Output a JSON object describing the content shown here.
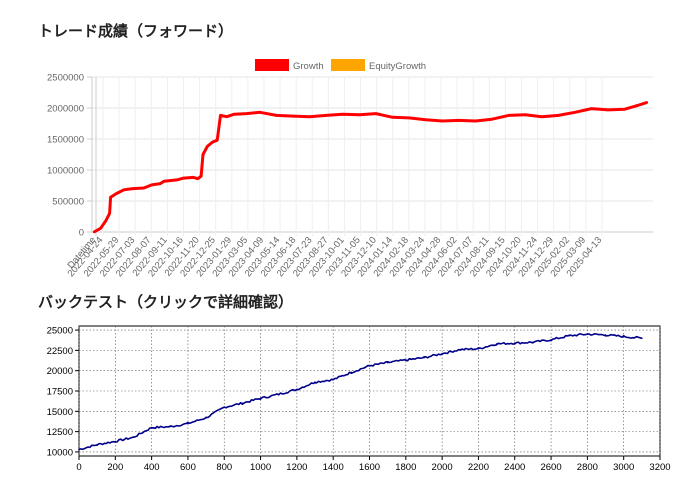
{
  "sections": {
    "forward_title": "トレード成績（フォワード）",
    "backtest_title": "バックテスト（クリックで詳細確認）"
  },
  "chart_data": [
    {
      "type": "line",
      "title": "トレード成績（フォワード）",
      "legend": {
        "placement": "top-center",
        "entries": [
          {
            "name": "Growth",
            "color": "#ff0000"
          },
          {
            "name": "EquityGrowth",
            "color": "#ffa500"
          }
        ]
      },
      "x_first_label": "Datetime",
      "x_tick_labels": [
        "2022-04-24",
        "2022-05-29",
        "2022-07-03",
        "2022-08-07",
        "2022-09-11",
        "2022-10-16",
        "2022-11-20",
        "2022-12-25",
        "2023-01-29",
        "2023-03-05",
        "2023-04-09",
        "2023-05-14",
        "2023-06-18",
        "2023-07-23",
        "2023-08-27",
        "2023-10-01",
        "2023-11-05",
        "2023-12-10",
        "2024-01-14",
        "2024-02-18",
        "2024-03-24",
        "2024-04-28",
        "2024-06-02",
        "2024-07-07",
        "2024-08-11",
        "2024-09-15",
        "2024-10-20",
        "2024-11-24",
        "2024-12-29",
        "2025-02-02",
        "2025-03-09",
        "2025-04-13"
      ],
      "ylim": [
        0,
        2500000
      ],
      "y_ticks": [
        0,
        500000,
        1000000,
        1500000,
        2000000,
        2500000
      ],
      "grid": true,
      "series": [
        {
          "name": "Growth",
          "color": "#ff0000",
          "points": [
            [
              "2022-03-20",
              0
            ],
            [
              "2022-04-03",
              60000
            ],
            [
              "2022-04-14",
              180000
            ],
            [
              "2022-04-22",
              300000
            ],
            [
              "2022-04-24",
              560000
            ],
            [
              "2022-05-06",
              620000
            ],
            [
              "2022-05-22",
              680000
            ],
            [
              "2022-06-10",
              700000
            ],
            [
              "2022-07-03",
              710000
            ],
            [
              "2022-07-20",
              760000
            ],
            [
              "2022-08-07",
              780000
            ],
            [
              "2022-08-15",
              820000
            ],
            [
              "2022-09-11",
              840000
            ],
            [
              "2022-09-25",
              870000
            ],
            [
              "2022-10-16",
              880000
            ],
            [
              "2022-10-25",
              860000
            ],
            [
              "2022-11-01",
              900000
            ],
            [
              "2022-11-05",
              1250000
            ],
            [
              "2022-11-14",
              1380000
            ],
            [
              "2022-11-25",
              1450000
            ],
            [
              "2022-12-05",
              1480000
            ],
            [
              "2022-12-12",
              1880000
            ],
            [
              "2022-12-25",
              1860000
            ],
            [
              "2023-01-10",
              1900000
            ],
            [
              "2023-02-05",
              1910000
            ],
            [
              "2023-03-05",
              1930000
            ],
            [
              "2023-04-09",
              1880000
            ],
            [
              "2023-05-14",
              1870000
            ],
            [
              "2023-06-18",
              1860000
            ],
            [
              "2023-07-23",
              1880000
            ],
            [
              "2023-08-27",
              1900000
            ],
            [
              "2023-10-01",
              1890000
            ],
            [
              "2023-11-05",
              1910000
            ],
            [
              "2023-12-10",
              1850000
            ],
            [
              "2024-01-14",
              1840000
            ],
            [
              "2024-02-18",
              1810000
            ],
            [
              "2024-03-24",
              1790000
            ],
            [
              "2024-04-28",
              1800000
            ],
            [
              "2024-06-02",
              1790000
            ],
            [
              "2024-07-07",
              1820000
            ],
            [
              "2024-08-11",
              1880000
            ],
            [
              "2024-09-15",
              1890000
            ],
            [
              "2024-10-20",
              1860000
            ],
            [
              "2024-11-24",
              1880000
            ],
            [
              "2024-12-29",
              1930000
            ],
            [
              "2025-02-02",
              1990000
            ],
            [
              "2025-03-09",
              1970000
            ],
            [
              "2025-04-13",
              1980000
            ],
            [
              "2025-05-10",
              2040000
            ],
            [
              "2025-05-30",
              2090000
            ]
          ]
        }
      ]
    },
    {
      "type": "line",
      "title": "バックテスト（クリックで詳細確認）",
      "xlim": [
        0,
        3200
      ],
      "x_ticks": [
        0,
        200,
        400,
        600,
        800,
        1000,
        1200,
        1400,
        1600,
        1800,
        2000,
        2200,
        2400,
        2600,
        2800,
        3000,
        3200
      ],
      "ylim": [
        9500,
        25500
      ],
      "y_ticks": [
        10000,
        12500,
        15000,
        17500,
        20000,
        22500,
        25000
      ],
      "grid": true,
      "series": [
        {
          "name": "",
          "color": "#00008b",
          "x": [
            0,
            100,
            200,
            300,
            400,
            500,
            600,
            700,
            800,
            900,
            1000,
            1100,
            1200,
            1300,
            1400,
            1500,
            1600,
            1700,
            1800,
            1900,
            2000,
            2100,
            2200,
            2300,
            2400,
            2500,
            2600,
            2700,
            2800,
            2900,
            3000,
            3100
          ],
          "y": [
            10300,
            10900,
            11300,
            11800,
            13000,
            13100,
            13500,
            14200,
            15500,
            16000,
            16600,
            17100,
            17700,
            18600,
            18900,
            19800,
            20600,
            21000,
            21300,
            21600,
            22100,
            22600,
            22700,
            23300,
            23400,
            23500,
            23800,
            24300,
            24500,
            24400,
            24200,
            24000
          ]
        }
      ]
    }
  ]
}
